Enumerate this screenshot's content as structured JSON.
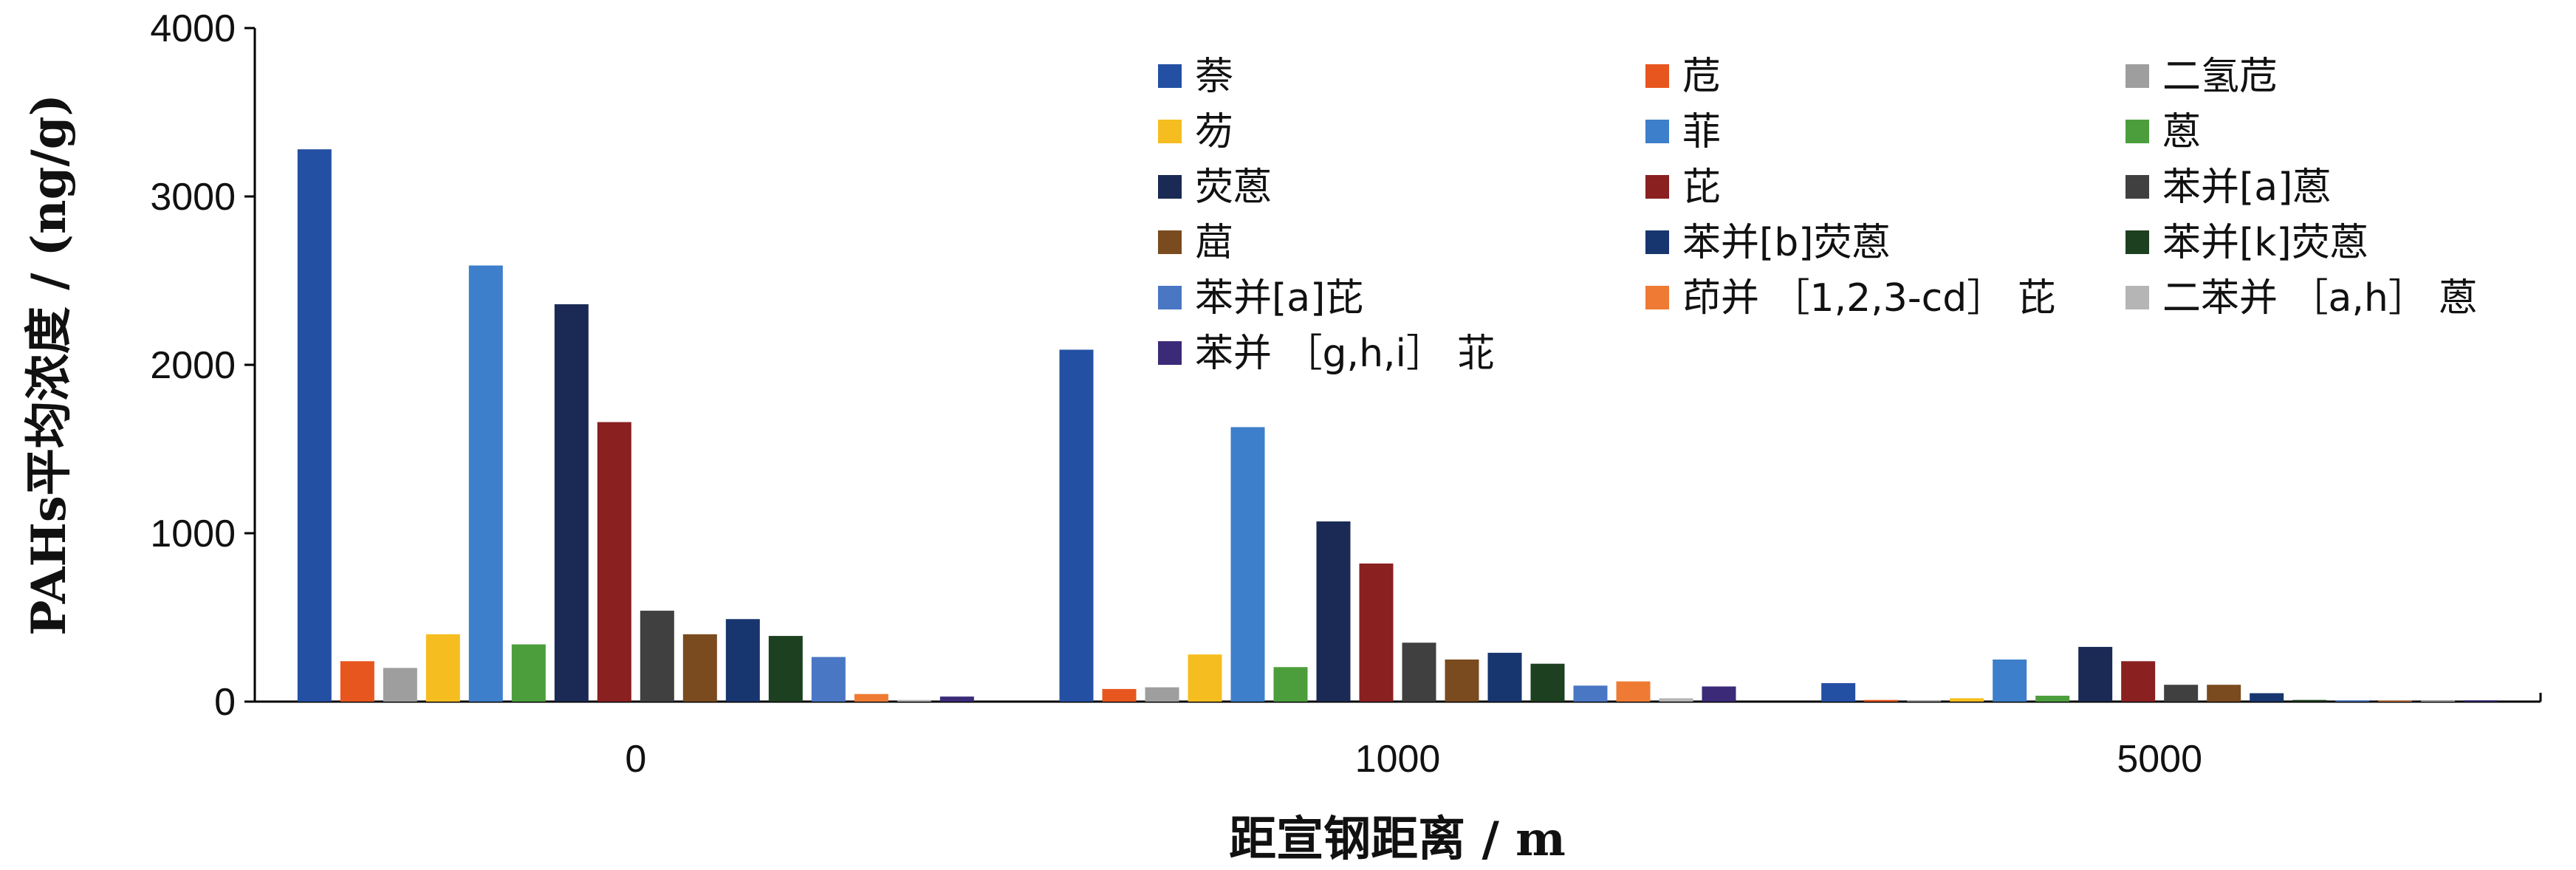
{
  "chart_data": {
    "type": "bar",
    "title": "",
    "xlabel": "距宣钢距离 / m",
    "ylabel": "PAHs平均浓度 / (ng/g)",
    "ylim": [
      0,
      4000
    ],
    "yticks": [
      0,
      1000,
      2000,
      3000,
      4000
    ],
    "categories": [
      "0",
      "1000",
      "5000"
    ],
    "grid": false,
    "legend_position": "top-right",
    "series": [
      {
        "name": "萘",
        "color": "#2450a4",
        "values": [
          3280,
          2090,
          110
        ]
      },
      {
        "name": "苊",
        "color": "#e8561f",
        "values": [
          240,
          75,
          10
        ]
      },
      {
        "name": "二氢苊",
        "color": "#9e9e9e",
        "values": [
          200,
          85,
          8
        ]
      },
      {
        "name": "芴",
        "color": "#f5bd1f",
        "values": [
          400,
          280,
          20
        ]
      },
      {
        "name": "菲",
        "color": "#3d7fca",
        "values": [
          2590,
          1630,
          250
        ]
      },
      {
        "name": "蒽",
        "color": "#4c9e3c",
        "values": [
          340,
          205,
          35
        ]
      },
      {
        "name": "荧蒽",
        "color": "#1a2a55",
        "values": [
          2360,
          1070,
          325
        ]
      },
      {
        "name": "芘",
        "color": "#8a2020",
        "values": [
          1660,
          820,
          240
        ]
      },
      {
        "name": "苯并[a]蒽",
        "color": "#404040",
        "values": [
          540,
          350,
          100
        ]
      },
      {
        "name": "䓛",
        "color": "#7a4b1e",
        "values": [
          400,
          250,
          100
        ]
      },
      {
        "name": "苯并[b]荧蒽",
        "color": "#17356e",
        "values": [
          490,
          290,
          50
        ]
      },
      {
        "name": "苯并[k]荧蒽",
        "color": "#1d4020",
        "values": [
          390,
          225,
          10
        ]
      },
      {
        "name": "苯并[a]芘",
        "color": "#4a77c4",
        "values": [
          265,
          95,
          8
        ]
      },
      {
        "name": "茚并 ［1,2,3-cd］ 芘",
        "color": "#ef7a33",
        "values": [
          45,
          120,
          5
        ]
      },
      {
        "name": "二苯并 ［a,h］ 蒽",
        "color": "#b5b5b5",
        "values": [
          10,
          20,
          5
        ]
      },
      {
        "name": "苯并 ［g,h,i］ 苝",
        "color": "#3b2a78",
        "values": [
          30,
          90,
          8
        ]
      }
    ]
  }
}
